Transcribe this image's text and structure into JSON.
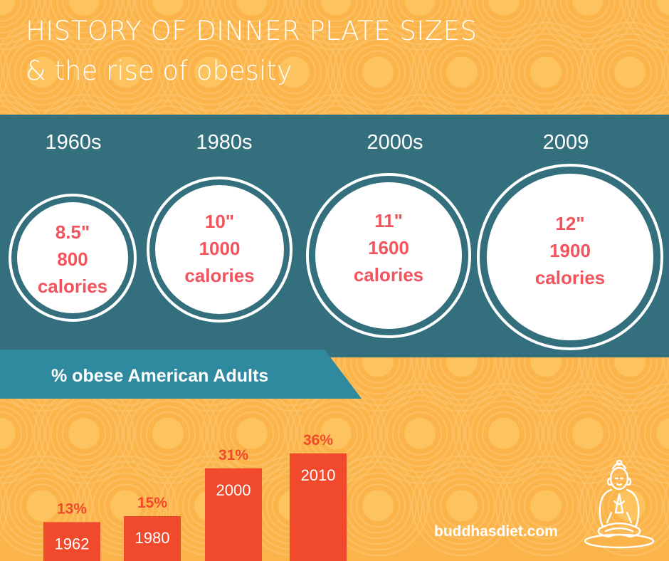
{
  "title": {
    "line1": "HISTORY OF DINNER PLATE SIZES",
    "line2": "& the rise of obesity"
  },
  "plates": [
    {
      "era": "1960s",
      "size": "8.5\"",
      "calories_value": "800",
      "calories_unit": "calories"
    },
    {
      "era": "1980s",
      "size": "10\"",
      "calories_value": "1000",
      "calories_unit": "calories"
    },
    {
      "era": "2000s",
      "size": "11\"",
      "calories_value": "1600",
      "calories_unit": "calories"
    },
    {
      "era": "2009",
      "size": "12\"",
      "calories_value": "1900",
      "calories_unit": "calories"
    }
  ],
  "obesity_label": "% obese American Adults",
  "chart_data": {
    "type": "bar",
    "title": "% obese American Adults",
    "categories": [
      "1962",
      "1980",
      "2000",
      "2010"
    ],
    "values": [
      13,
      15,
      31,
      36
    ],
    "value_labels": [
      "13%",
      "15%",
      "31%",
      "36%"
    ],
    "ylim": [
      0,
      40
    ],
    "bar_color": "#f1492c",
    "label_color": "#f1492c"
  },
  "site": "buddhasdiet.com",
  "colors": {
    "background": "#fbb44a",
    "band": "#336f7d",
    "ribbon": "#2f8aa0",
    "accent_text": "#f2535c"
  },
  "icons": {
    "buddha": "buddha-meditating-icon"
  }
}
